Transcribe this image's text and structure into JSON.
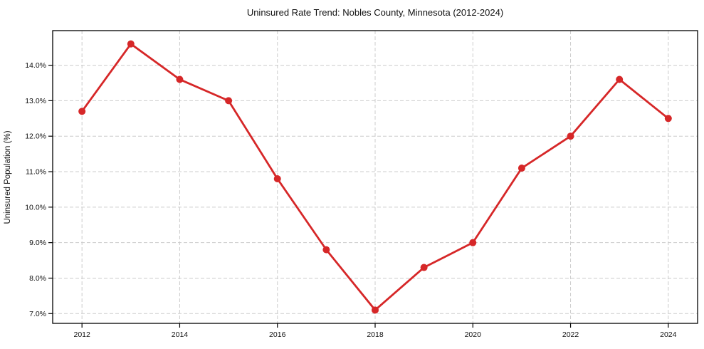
{
  "chart_data": {
    "type": "line",
    "title": "Uninsured Rate Trend: Nobles County, Minnesota (2012-2024)",
    "xlabel": "",
    "ylabel": "Uninsured Population (%)",
    "series_name": "Uninsured rate",
    "x": [
      2012,
      2013,
      2014,
      2015,
      2016,
      2017,
      2018,
      2019,
      2020,
      2021,
      2022,
      2023,
      2024
    ],
    "values": [
      12.7,
      14.6,
      13.6,
      13.0,
      10.8,
      8.8,
      7.1,
      8.3,
      9.0,
      11.1,
      12.0,
      13.6,
      12.5
    ],
    "xlim": [
      2011.4,
      2024.6
    ],
    "ylim": [
      6.725,
      14.975
    ],
    "xticks": [
      2012,
      2014,
      2016,
      2018,
      2020,
      2022,
      2024
    ],
    "xtick_labels": [
      "2012",
      "2014",
      "2016",
      "2018",
      "2020",
      "2022",
      "2024"
    ],
    "yticks": [
      7,
      8,
      9,
      10,
      11,
      12,
      13,
      14
    ],
    "ytick_labels": [
      "7.0%",
      "8.0%",
      "9.0%",
      "10.0%",
      "11.0%",
      "12.0%",
      "13.0%",
      "14.0%"
    ],
    "grid": true,
    "grid_style": "dashed",
    "legend": false,
    "line_color": "#d62728",
    "marker": "circle",
    "grid_color": "#cccccc",
    "spine_color": "#000000",
    "background_color": "#ffffff"
  }
}
